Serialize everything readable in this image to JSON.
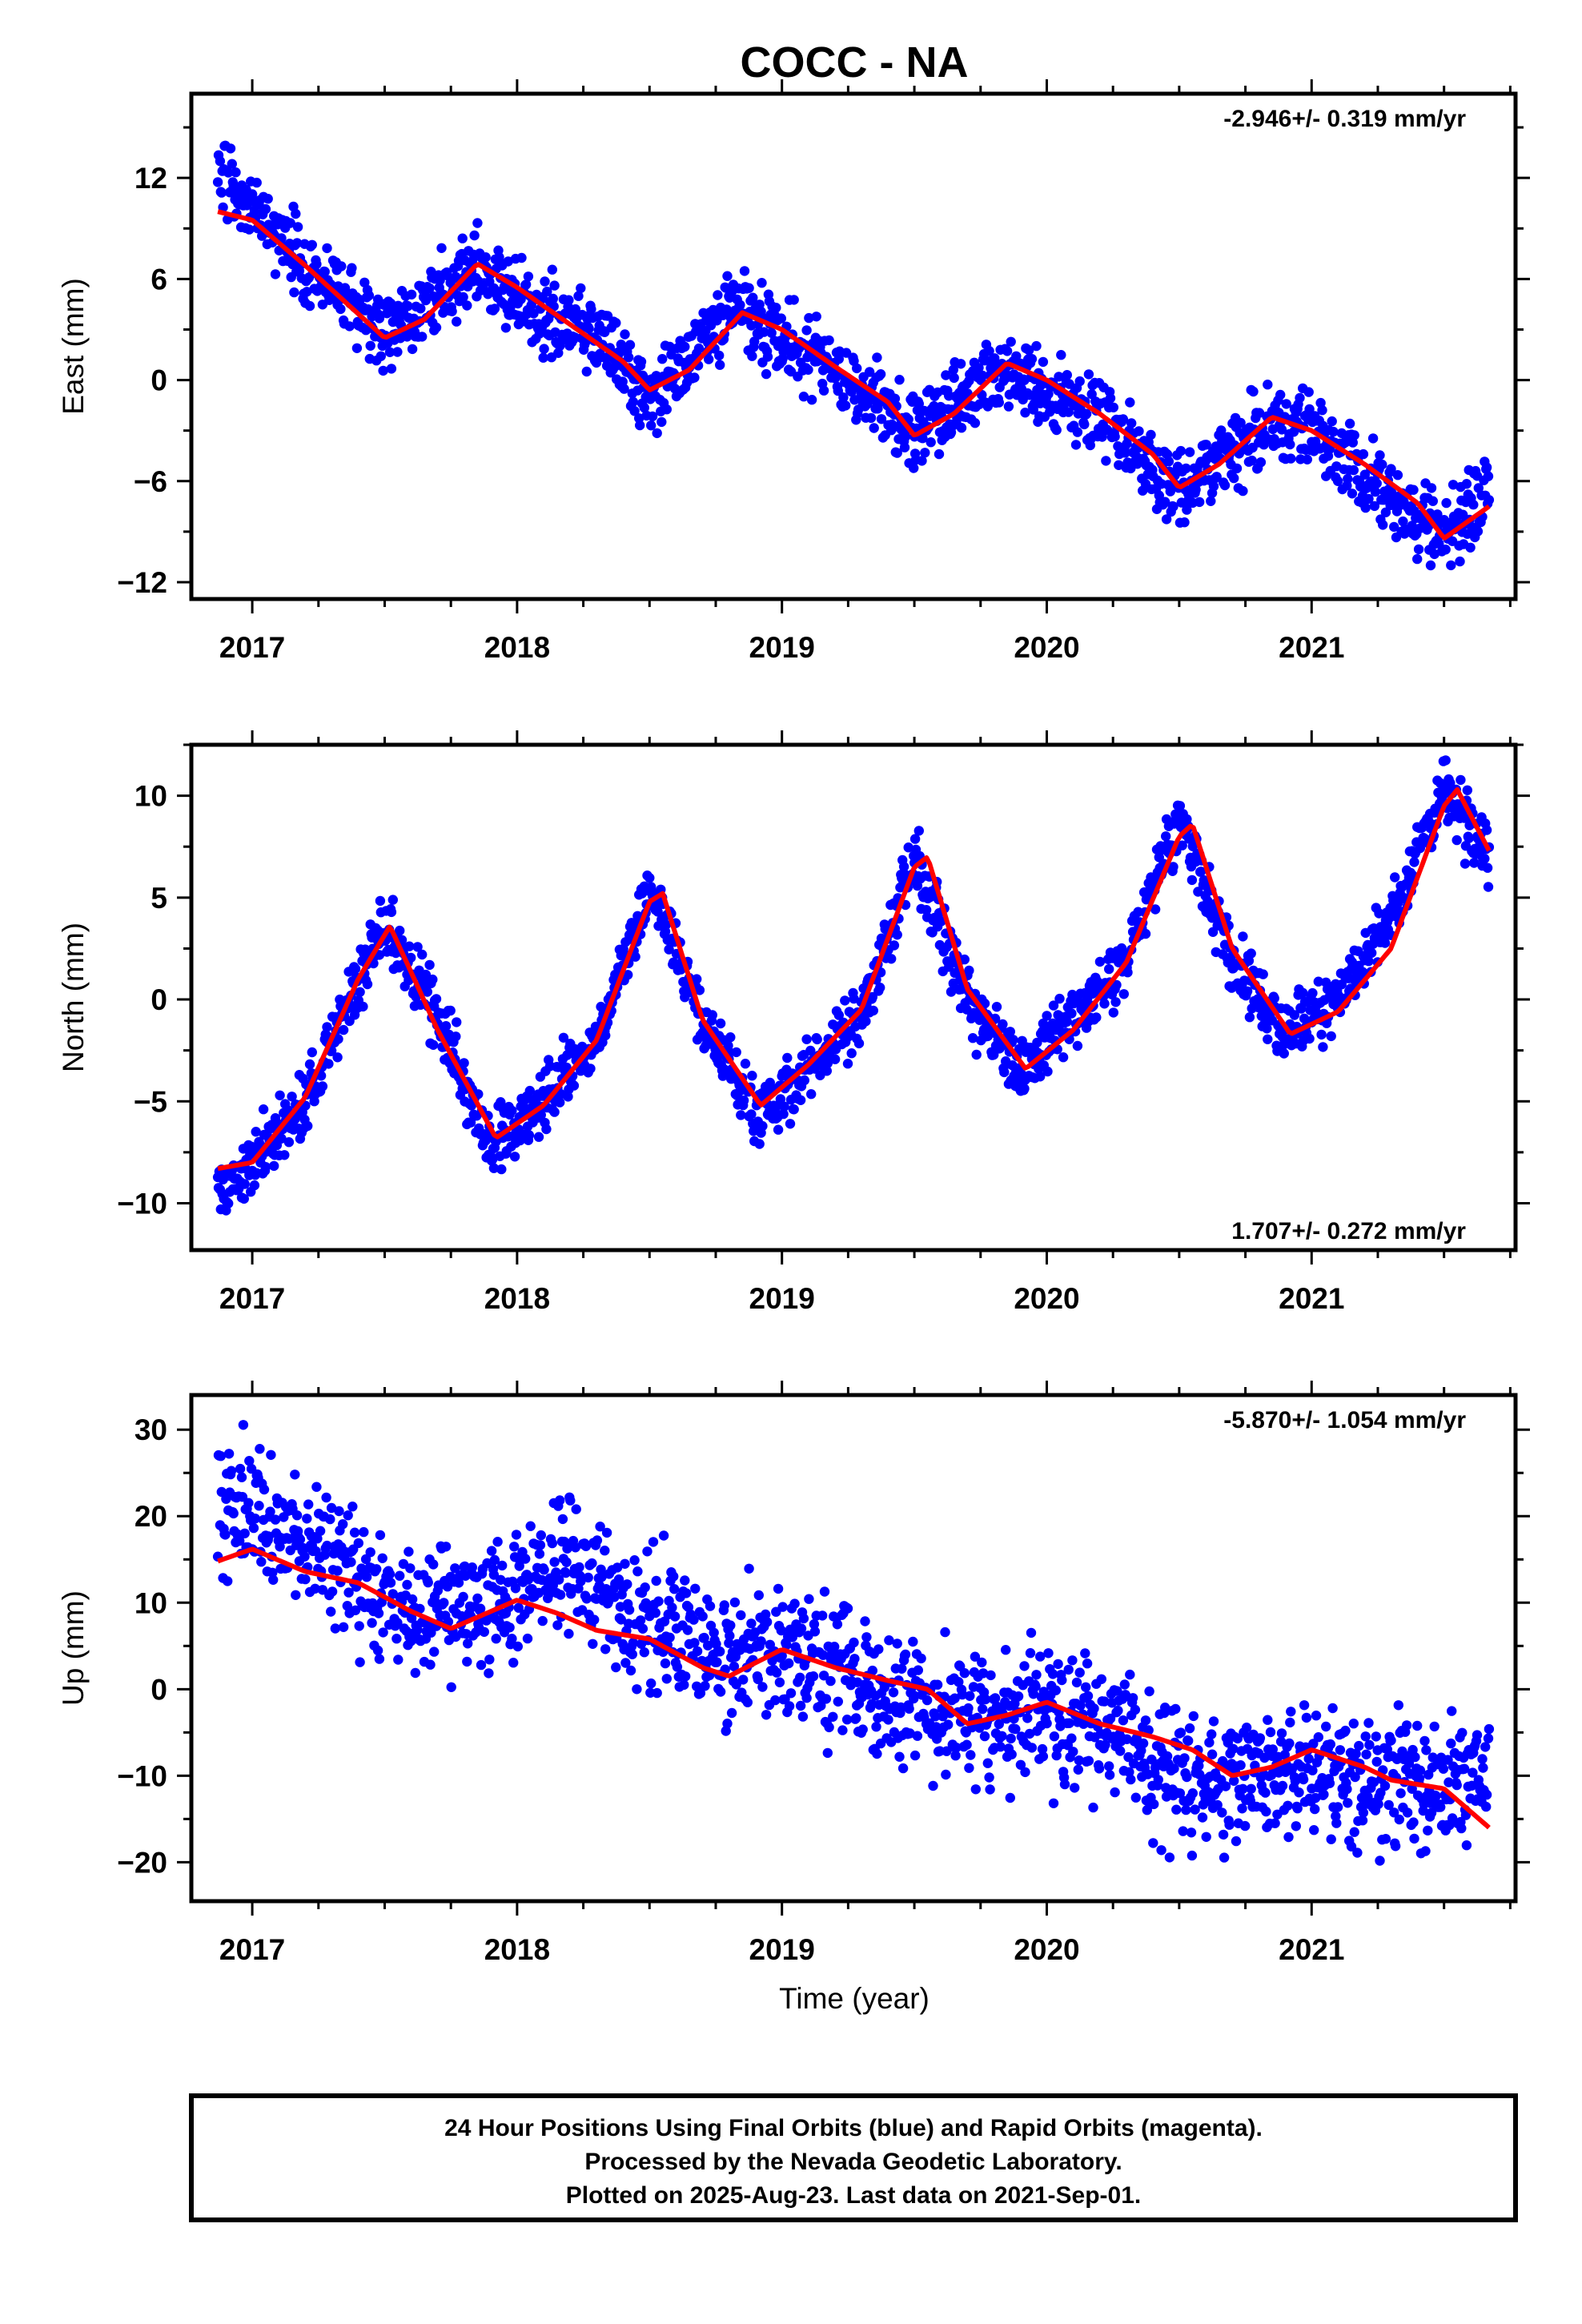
{
  "figure": {
    "title": "COCC - NA",
    "xlabel": "Time (year)",
    "colors": {
      "data": "#0000ff",
      "model": "#ff0000",
      "axis": "#000000"
    },
    "footer": [
      "24 Hour Positions Using Final Orbits (blue) and Rapid Orbits (magenta).",
      "Processed by the Nevada Geodetic Laboratory.",
      "Plotted on 2025-Aug-23. Last data on 2021-Sep-01."
    ]
  },
  "chart_data": [
    {
      "type": "scatter",
      "ylabel": "East (mm)",
      "rate_label": "-2.946+/- 0.319 mm/yr",
      "rate_position": "top-right",
      "xlim": [
        2016.77,
        2021.77
      ],
      "ylim": [
        -13,
        17
      ],
      "xticks": [
        2017,
        2018,
        2019,
        2020,
        2021
      ],
      "yticks": [
        -12,
        -6,
        0,
        6,
        12
      ],
      "x_range": [
        2016.87,
        2021.67
      ],
      "series": [
        {
          "kind": "points",
          "spread": 1.3,
          "trend_points": [
            [
              2016.87,
              12.0
            ],
            [
              2017.0,
              10.5
            ],
            [
              2017.2,
              6.5
            ],
            [
              2017.5,
              3.0
            ],
            [
              2017.85,
              6.5
            ],
            [
              2018.0,
              4.5
            ],
            [
              2018.3,
              3.0
            ],
            [
              2018.5,
              -1.5
            ],
            [
              2018.8,
              4.5
            ],
            [
              2019.0,
              2.5
            ],
            [
              2019.2,
              0.5
            ],
            [
              2019.5,
              -3.0
            ],
            [
              2019.85,
              1.0
            ],
            [
              2020.0,
              -1.0
            ],
            [
              2020.2,
              -2.0
            ],
            [
              2020.5,
              -6.5
            ],
            [
              2020.85,
              -2.5
            ],
            [
              2021.0,
              -3.0
            ],
            [
              2021.2,
              -5.5
            ],
            [
              2021.5,
              -9.5
            ],
            [
              2021.67,
              -6.5
            ]
          ]
        },
        {
          "kind": "fit",
          "trend_points": [
            [
              2016.87,
              10.0
            ],
            [
              2017.0,
              9.5
            ],
            [
              2017.2,
              6.8
            ],
            [
              2017.5,
              2.5
            ],
            [
              2017.65,
              3.6
            ],
            [
              2017.85,
              6.9
            ],
            [
              2018.0,
              5.5
            ],
            [
              2018.2,
              3.3
            ],
            [
              2018.4,
              1.1
            ],
            [
              2018.5,
              -0.6
            ],
            [
              2018.65,
              0.6
            ],
            [
              2018.85,
              4.0
            ],
            [
              2019.0,
              3.0
            ],
            [
              2019.2,
              0.8
            ],
            [
              2019.4,
              -1.3
            ],
            [
              2019.5,
              -3.3
            ],
            [
              2019.65,
              -2.0
            ],
            [
              2019.85,
              1.0
            ],
            [
              2020.0,
              0.0
            ],
            [
              2020.2,
              -2.0
            ],
            [
              2020.4,
              -4.4
            ],
            [
              2020.5,
              -6.4
            ],
            [
              2020.65,
              -5.0
            ],
            [
              2020.85,
              -2.2
            ],
            [
              2021.0,
              -3.0
            ],
            [
              2021.2,
              -5.0
            ],
            [
              2021.4,
              -7.3
            ],
            [
              2021.5,
              -9.4
            ],
            [
              2021.67,
              -7.5
            ]
          ]
        }
      ]
    },
    {
      "type": "scatter",
      "ylabel": "North (mm)",
      "rate_label": "1.707+/- 0.272 mm/yr",
      "rate_position": "bottom-right",
      "xlim": [
        2016.77,
        2021.77
      ],
      "ylim": [
        -12.3,
        12.5
      ],
      "xticks": [
        2017,
        2018,
        2019,
        2020,
        2021
      ],
      "yticks": [
        -10,
        -5,
        0,
        5,
        10
      ],
      "x_range": [
        2016.87,
        2021.67
      ],
      "series": [
        {
          "kind": "points",
          "spread": 0.9,
          "trend_points": [
            [
              2016.87,
              -9.5
            ],
            [
              2017.0,
              -8.0
            ],
            [
              2017.2,
              -5.0
            ],
            [
              2017.5,
              3.8
            ],
            [
              2017.7,
              -1.0
            ],
            [
              2017.9,
              -7.0
            ],
            [
              2018.1,
              -5.0
            ],
            [
              2018.3,
              -2.0
            ],
            [
              2018.5,
              5.5
            ],
            [
              2018.7,
              -1.0
            ],
            [
              2018.9,
              -5.5
            ],
            [
              2019.1,
              -3.5
            ],
            [
              2019.3,
              -1.0
            ],
            [
              2019.5,
              7.0
            ],
            [
              2019.7,
              0.0
            ],
            [
              2019.9,
              -3.5
            ],
            [
              2020.1,
              -1.0
            ],
            [
              2020.3,
              2.0
            ],
            [
              2020.5,
              9.0
            ],
            [
              2020.7,
              2.0
            ],
            [
              2020.9,
              -1.5
            ],
            [
              2021.1,
              0.0
            ],
            [
              2021.3,
              4.0
            ],
            [
              2021.5,
              10.0
            ],
            [
              2021.67,
              7.0
            ]
          ]
        },
        {
          "kind": "fit",
          "trend_points": [
            [
              2016.87,
              -8.3
            ],
            [
              2017.0,
              -8.0
            ],
            [
              2017.2,
              -4.8
            ],
            [
              2017.4,
              1.0
            ],
            [
              2017.52,
              3.6
            ],
            [
              2017.7,
              -1.5
            ],
            [
              2017.92,
              -6.8
            ],
            [
              2018.1,
              -5.2
            ],
            [
              2018.3,
              -2.0
            ],
            [
              2018.5,
              4.8
            ],
            [
              2018.55,
              5.2
            ],
            [
              2018.7,
              -1.0
            ],
            [
              2018.92,
              -5.2
            ],
            [
              2019.1,
              -3.2
            ],
            [
              2019.3,
              -0.5
            ],
            [
              2019.5,
              6.5
            ],
            [
              2019.55,
              7.0
            ],
            [
              2019.7,
              0.5
            ],
            [
              2019.92,
              -3.4
            ],
            [
              2020.1,
              -1.5
            ],
            [
              2020.3,
              1.8
            ],
            [
              2020.5,
              8.0
            ],
            [
              2020.55,
              8.6
            ],
            [
              2020.7,
              2.5
            ],
            [
              2020.92,
              -1.7
            ],
            [
              2021.1,
              -0.6
            ],
            [
              2021.3,
              2.5
            ],
            [
              2021.5,
              9.5
            ],
            [
              2021.55,
              10.3
            ],
            [
              2021.67,
              7.3
            ]
          ]
        }
      ]
    },
    {
      "type": "scatter",
      "ylabel": "Up (mm)",
      "rate_label": "-5.870+/- 1.054 mm/yr",
      "rate_position": "top-right",
      "xlim": [
        2016.77,
        2021.77
      ],
      "ylim": [
        -24.5,
        34
      ],
      "xticks": [
        2017,
        2018,
        2019,
        2020,
        2021
      ],
      "yticks": [
        -20,
        -10,
        0,
        10,
        20,
        30
      ],
      "x_range": [
        2016.87,
        2021.67
      ],
      "series": [
        {
          "kind": "points",
          "spread": 4.5,
          "trend_points": [
            [
              2016.87,
              22.0
            ],
            [
              2017.0,
              20.0
            ],
            [
              2017.3,
              15.0
            ],
            [
              2017.6,
              8.0
            ],
            [
              2018.0,
              11.0
            ],
            [
              2018.2,
              14.0
            ],
            [
              2018.5,
              8.0
            ],
            [
              2018.8,
              3.0
            ],
            [
              2019.0,
              6.0
            ],
            [
              2019.3,
              0.0
            ],
            [
              2019.6,
              -3.0
            ],
            [
              2020.0,
              -3.0
            ],
            [
              2020.3,
              -6.0
            ],
            [
              2020.6,
              -12.0
            ],
            [
              2021.0,
              -8.0
            ],
            [
              2021.3,
              -11.0
            ],
            [
              2021.67,
              -10.0
            ]
          ]
        },
        {
          "kind": "fit",
          "trend_points": [
            [
              2016.87,
              14.8
            ],
            [
              2017.0,
              16.2
            ],
            [
              2017.2,
              13.6
            ],
            [
              2017.4,
              12.3
            ],
            [
              2017.6,
              9.0
            ],
            [
              2017.75,
              7.0
            ],
            [
              2018.0,
              10.3
            ],
            [
              2018.15,
              8.8
            ],
            [
              2018.3,
              6.8
            ],
            [
              2018.5,
              5.8
            ],
            [
              2018.7,
              2.5
            ],
            [
              2018.8,
              1.5
            ],
            [
              2019.0,
              4.6
            ],
            [
              2019.2,
              2.5
            ],
            [
              2019.4,
              1.0
            ],
            [
              2019.55,
              0.0
            ],
            [
              2019.7,
              -4.0
            ],
            [
              2019.85,
              -3.0
            ],
            [
              2020.0,
              -1.5
            ],
            [
              2020.2,
              -4.0
            ],
            [
              2020.4,
              -5.5
            ],
            [
              2020.55,
              -7.0
            ],
            [
              2020.7,
              -10.0
            ],
            [
              2020.85,
              -9.0
            ],
            [
              2021.0,
              -7.0
            ],
            [
              2021.2,
              -9.0
            ],
            [
              2021.3,
              -10.5
            ],
            [
              2021.5,
              -11.5
            ],
            [
              2021.67,
              -16.0
            ]
          ]
        }
      ]
    }
  ]
}
